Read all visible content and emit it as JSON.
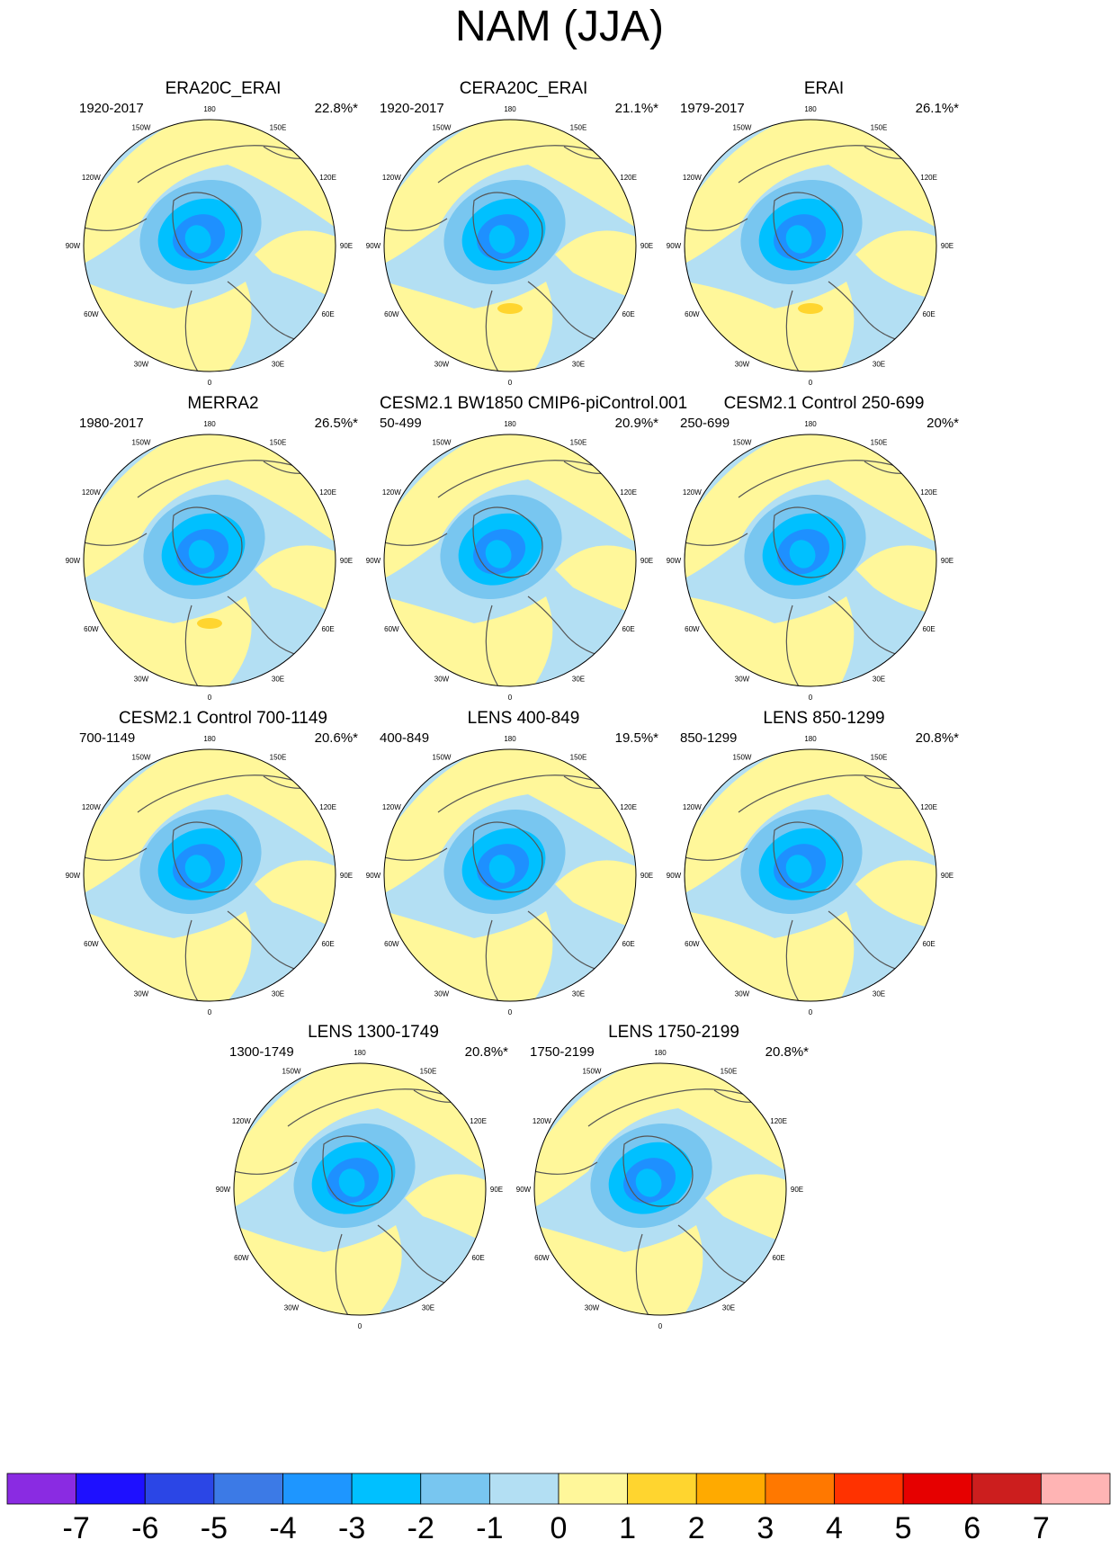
{
  "title": "NAM (JJA)",
  "colors": {
    "ocean_neutral": "#b3dff3",
    "land_neutral": "#fff79a",
    "coast": "#555555",
    "neg_levels": [
      "#78c6f0",
      "#00c0ff",
      "#1e90ff",
      "#3c78ec",
      "#2846e6",
      "#1e0ff5",
      "#7b28f0"
    ],
    "pos_levels": [
      "#ffd52f",
      "#ffaa00",
      "#ff7800",
      "#ff3200",
      "#e60000",
      "#cc2222",
      "#ffb4b4"
    ]
  },
  "longitude_labels": [
    "180",
    "150E",
    "120E",
    "90E",
    "60E",
    "30E",
    "0",
    "30W",
    "60W",
    "90W",
    "120W",
    "150W"
  ],
  "panels": [
    {
      "title": "ERA20C_ERAI",
      "period": "1920-2017",
      "variance": "22.8%*"
    },
    {
      "title": "CERA20C_ERAI",
      "period": "1920-2017",
      "variance": "21.1%*"
    },
    {
      "title": "ERAI",
      "period": "1979-2017",
      "variance": "26.1%*"
    },
    {
      "title": "MERRA2",
      "period": "1980-2017",
      "variance": "26.5%*"
    },
    {
      "title": "CESM2.1 BW1850 CMIP6-piControl.001",
      "period": "50-499",
      "variance": "20.9%*"
    },
    {
      "title": "CESM2.1 Control 250-699",
      "period": "250-699",
      "variance": "20%*"
    },
    {
      "title": "CESM2.1 Control 700-1149",
      "period": "700-1149",
      "variance": "20.6%*"
    },
    {
      "title": "LENS 400-849",
      "period": "400-849",
      "variance": "19.5%*"
    },
    {
      "title": "LENS 850-1299",
      "period": "850-1299",
      "variance": "20.8%*"
    },
    {
      "title": "LENS 1300-1749",
      "period": "1300-1749",
      "variance": "20.8%*"
    },
    {
      "title": "LENS 1750-2199",
      "period": "1750-2199",
      "variance": "20.8%*"
    }
  ],
  "colorbar": {
    "labels": [
      "-7",
      "-6",
      "-5",
      "-4",
      "-3",
      "-2",
      "-1",
      "0",
      "1",
      "2",
      "3",
      "4",
      "5",
      "6",
      "7"
    ],
    "colors": [
      "#8a2be2",
      "#1e10ff",
      "#2b46e6",
      "#3c7ae6",
      "#1e96ff",
      "#00c0ff",
      "#78c6f0",
      "#b3dff3",
      "#fff79a",
      "#ffd52f",
      "#ffaa00",
      "#ff7800",
      "#ff3200",
      "#e60000",
      "#cc1e1e",
      "#ffb4b4"
    ]
  }
}
